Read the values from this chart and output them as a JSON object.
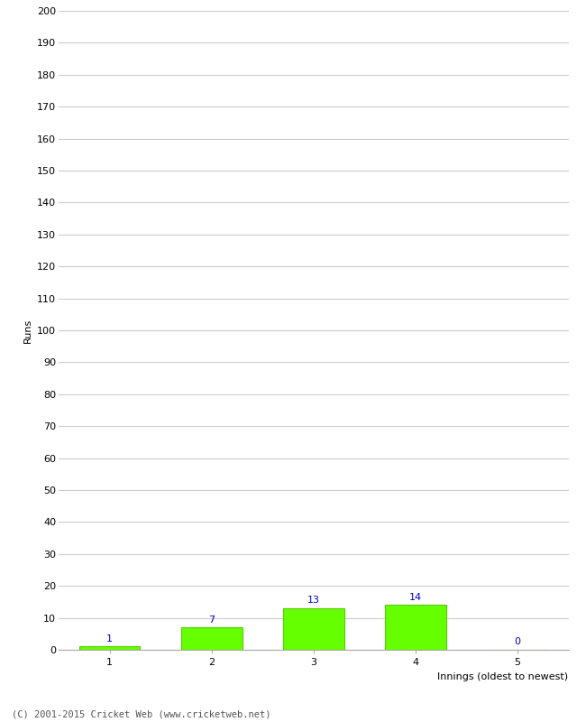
{
  "xlabel": "Innings (oldest to newest)",
  "ylabel": "Runs",
  "categories": [
    1,
    2,
    3,
    4,
    5
  ],
  "values": [
    1,
    7,
    13,
    14,
    0
  ],
  "bar_color": "#66FF00",
  "bar_edge_color": "#55CC00",
  "label_color": "#0000CC",
  "ylim": [
    0,
    200
  ],
  "yticks": [
    0,
    10,
    20,
    30,
    40,
    50,
    60,
    70,
    80,
    90,
    100,
    110,
    120,
    130,
    140,
    150,
    160,
    170,
    180,
    190,
    200
  ],
  "background_color": "#ffffff",
  "grid_color": "#cccccc",
  "footer": "(C) 2001-2015 Cricket Web (www.cricketweb.net)",
  "bar_width": 0.6,
  "label_fontsize": 8,
  "tick_fontsize": 8,
  "axis_label_fontsize": 8,
  "footer_fontsize": 7.5
}
